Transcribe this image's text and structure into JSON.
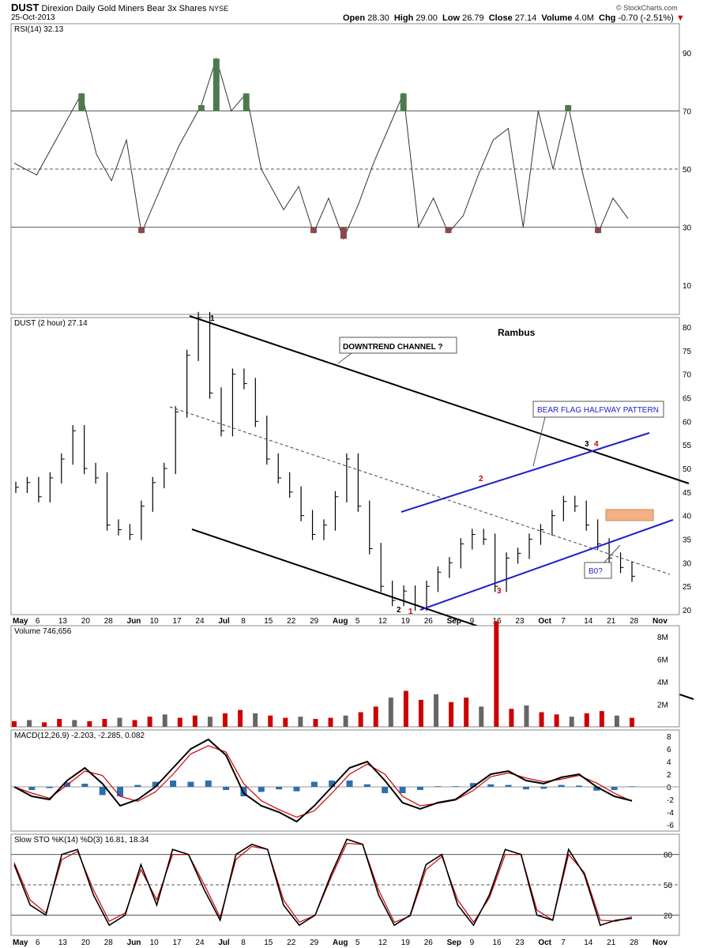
{
  "header": {
    "symbol": "DUST",
    "name": "Direxion Daily Gold Miners Bear 3x Shares",
    "exchange": "NYSE",
    "date": "25-Oct-2013",
    "open_label": "Open",
    "open": "28.30",
    "high_label": "High",
    "high": "29.00",
    "low_label": "Low",
    "low": "26.79",
    "close_label": "Close",
    "close": "27.14",
    "volume_label": "Volume",
    "volume": "4.0M",
    "chg_label": "Chg",
    "chg": "-0.70 (-2.51%)",
    "copyright": "© StockCharts.com"
  },
  "colors": {
    "up": "#000000",
    "down": "#cc0000",
    "channel": "#1f1fc8",
    "rsi_ob": "#4d7a4d",
    "rsi_os": "#8b4a4a",
    "macd_hist": "#2a6fb0",
    "box": "#f4b183"
  },
  "chart_data": [
    {
      "type": "line",
      "id": "rsi",
      "label": "RSI(14) 32.13",
      "ylim": [
        0,
        100
      ],
      "ticks": [
        10,
        30,
        50,
        70,
        90
      ],
      "reference_lines": [
        30,
        50,
        70
      ],
      "x": [
        0,
        6,
        12,
        18,
        22,
        26,
        30,
        34,
        38,
        44,
        50,
        54,
        58,
        62,
        66,
        72,
        76,
        80,
        84,
        88,
        92,
        96,
        100,
        104,
        108,
        112,
        116,
        120,
        124,
        128,
        132,
        136,
        140,
        144,
        148,
        152,
        156,
        160,
        164
      ],
      "values": [
        52,
        48,
        62,
        76,
        55,
        46,
        60,
        28,
        40,
        58,
        72,
        88,
        70,
        76,
        50,
        36,
        44,
        28,
        40,
        26,
        38,
        52,
        64,
        76,
        30,
        40,
        28,
        34,
        48,
        60,
        64,
        30,
        70,
        50,
        72,
        48,
        28,
        40,
        33
      ]
    },
    {
      "type": "ohlc",
      "id": "price",
      "label": "DUST (2 hour) 27.14",
      "ylim": [
        19,
        82
      ],
      "ticks": [
        20,
        25,
        30,
        35,
        40,
        45,
        50,
        55,
        60,
        65,
        70,
        75,
        80
      ],
      "x_categories": [
        "May",
        "6",
        "13",
        "20",
        "28",
        "Jun",
        "10",
        "17",
        "24",
        "Jul",
        "8",
        "15",
        "22",
        "29",
        "Aug",
        "5",
        "12",
        "19",
        "26",
        "Sep",
        "9",
        "16",
        "23",
        "Oct",
        "7",
        "14",
        "21",
        "28",
        "Nov"
      ],
      "closes": [
        46,
        47,
        44,
        48,
        52,
        58,
        50,
        48,
        38,
        37,
        36,
        42,
        47,
        50,
        62,
        74,
        82,
        66,
        58,
        70,
        68,
        60,
        52,
        48,
        45,
        40,
        36,
        38,
        44,
        52,
        42,
        33,
        25,
        22,
        24,
        21,
        25,
        28,
        30,
        34,
        36,
        35,
        25,
        31,
        32,
        35,
        37,
        40,
        43,
        42,
        38,
        34,
        31,
        29,
        27.14
      ],
      "annotations": [
        {
          "text": "Rambus",
          "kind": "note"
        },
        {
          "text": "DOWNTREND CHANNEL ?",
          "kind": "callout"
        },
        {
          "text": "BEAR FLAG HALFWAY PATTERN",
          "kind": "callout"
        },
        {
          "text": "B0?",
          "kind": "callout"
        },
        {
          "text": "1",
          "kind": "point"
        },
        {
          "text": "2",
          "kind": "point"
        },
        {
          "text": "3",
          "kind": "point"
        },
        {
          "text": "4",
          "kind": "point"
        },
        {
          "text": "1",
          "kind": "point"
        },
        {
          "text": "2",
          "kind": "point"
        },
        {
          "text": "3",
          "kind": "point"
        }
      ]
    },
    {
      "type": "bar",
      "id": "volume",
      "label": "Volume 746,656",
      "ylim": [
        0,
        9
      ],
      "ticks": [
        "2M",
        "4M",
        "6M",
        "8M"
      ],
      "values": [
        0.5,
        0.6,
        0.4,
        0.7,
        0.6,
        0.5,
        0.7,
        0.8,
        0.6,
        0.9,
        1.1,
        0.8,
        1.0,
        0.9,
        1.2,
        1.5,
        1.2,
        1.0,
        0.8,
        0.9,
        0.7,
        0.8,
        1.0,
        1.3,
        1.8,
        2.6,
        3.2,
        2.4,
        2.9,
        2.2,
        2.6,
        1.8,
        9.4,
        1.6,
        1.9,
        1.3,
        1.1,
        0.9,
        1.2,
        1.4,
        1.0,
        0.8
      ]
    },
    {
      "type": "line",
      "id": "macd",
      "label": "MACD(12,26,9) -2.203, -2.285, 0.082",
      "ylim": [
        -7,
        9
      ],
      "ticks": [
        8,
        6,
        4,
        2,
        0,
        -2,
        -4,
        -6
      ],
      "macd": [
        0,
        -1.5,
        -2,
        1,
        3,
        0.5,
        -3,
        -2,
        0,
        3,
        6,
        7.5,
        5,
        -1,
        -3,
        -4,
        -5.5,
        -3,
        0,
        3,
        4,
        1,
        -2.5,
        -3.5,
        -2.5,
        -2,
        0,
        2,
        2.5,
        1,
        0.5,
        1.5,
        2,
        0,
        -1.5,
        -2.2
      ],
      "signal": [
        0,
        -1,
        -1.8,
        0.3,
        2.5,
        1.8,
        -1.5,
        -2.3,
        -0.8,
        2,
        5.2,
        6.5,
        5.5,
        0.5,
        -2.2,
        -3.6,
        -4.8,
        -3.8,
        -1,
        2,
        3.6,
        2,
        -1.5,
        -3,
        -2.6,
        -2.1,
        -0.6,
        1.6,
        2.2,
        1.4,
        0.8,
        1.2,
        1.8,
        0.6,
        -1,
        -2.285
      ]
    },
    {
      "type": "line",
      "id": "sto",
      "label": "Slow STO %K(14) %D(3) 16.81, 18.34",
      "ylim": [
        0,
        100
      ],
      "ticks": [
        20,
        50,
        80
      ],
      "reference_lines": [
        20,
        50,
        80
      ],
      "k": [
        70,
        30,
        20,
        80,
        85,
        40,
        10,
        20,
        70,
        30,
        85,
        80,
        45,
        15,
        80,
        90,
        85,
        30,
        10,
        20,
        60,
        95,
        90,
        40,
        10,
        20,
        70,
        80,
        30,
        10,
        40,
        85,
        80,
        20,
        15,
        85,
        60,
        10,
        15,
        16.81
      ],
      "d": [
        72,
        35,
        22,
        75,
        83,
        45,
        14,
        22,
        65,
        35,
        80,
        80,
        50,
        18,
        75,
        88,
        85,
        35,
        13,
        20,
        57,
        91,
        90,
        45,
        13,
        19,
        65,
        78,
        35,
        13,
        37,
        80,
        80,
        25,
        15,
        80,
        62,
        15,
        14,
        18.34
      ]
    }
  ]
}
